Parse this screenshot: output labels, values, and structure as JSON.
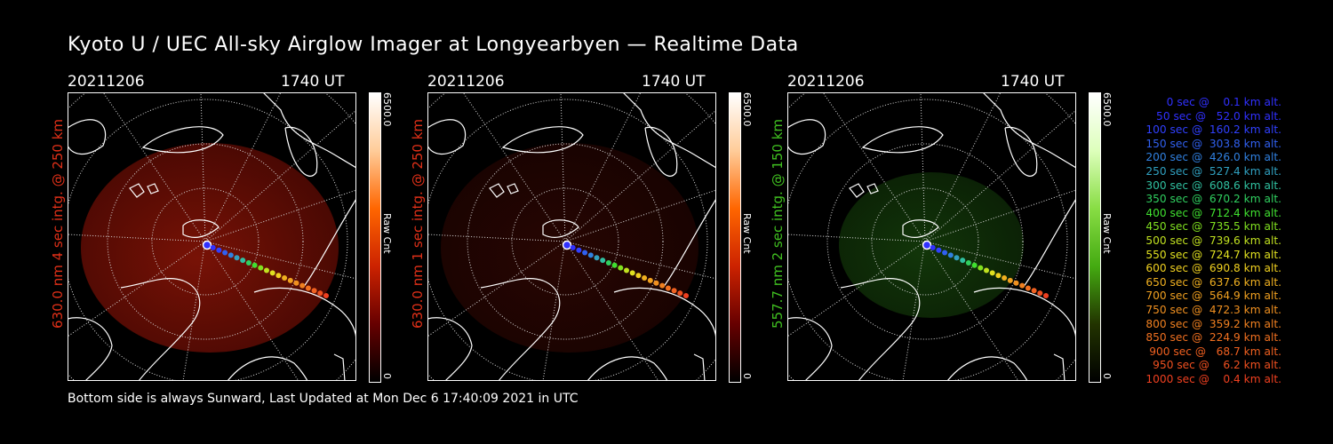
{
  "page": {
    "title": "Kyoto U / UEC All-sky Airglow Imager at Longyearbyen — Realtime Data",
    "footer": "Bottom side is always Sunward, Last Updated at Mon Dec  6 17:40:09 2021 in UTC"
  },
  "panels": [
    {
      "date": "20211206",
      "time": "1740 UT",
      "side_label": "630.0 nm 4 sec intg. @ 250 km",
      "side_color": "#e03018",
      "cbar_max": "6500.0",
      "cbar_min": "0",
      "cbar_label": "Raw Cnt",
      "glow": "red",
      "intensity": 0.75
    },
    {
      "date": "20211206",
      "time": "1740 UT",
      "side_label": "630.0 nm 1 sec intg. @ 250 km",
      "side_color": "#e03018",
      "cbar_max": "6500.0",
      "cbar_min": "0",
      "cbar_label": "Raw Cnt",
      "glow": "red",
      "intensity": 0.25
    },
    {
      "date": "20211206",
      "time": "1740 UT",
      "side_label": "557.7 nm 2 sec intg. @ 150 km",
      "side_color": "#40c020",
      "cbar_max": "6500.0",
      "cbar_min": "0",
      "cbar_label": "Raw Cnt",
      "glow": "green",
      "intensity": 0.6
    }
  ],
  "legend": [
    {
      "text": "   0 sec @    0.1 km alt.",
      "color": "#3030ff"
    },
    {
      "text": "  50 sec @   52.0 km alt.",
      "color": "#3030ff"
    },
    {
      "text": " 100 sec @  160.2 km alt.",
      "color": "#3040ff"
    },
    {
      "text": " 150 sec @  303.8 km alt.",
      "color": "#3060f0"
    },
    {
      "text": " 200 sec @  426.0 km alt.",
      "color": "#3080e0"
    },
    {
      "text": " 250 sec @  527.4 km alt.",
      "color": "#30a0c0"
    },
    {
      "text": " 300 sec @  608.6 km alt.",
      "color": "#30c0a0"
    },
    {
      "text": " 350 sec @  670.2 km alt.",
      "color": "#30d060"
    },
    {
      "text": " 400 sec @  712.4 km alt.",
      "color": "#40e030"
    },
    {
      "text": " 450 sec @  735.5 km alt.",
      "color": "#80e020"
    },
    {
      "text": " 500 sec @  739.6 km alt.",
      "color": "#c0e020"
    },
    {
      "text": " 550 sec @  724.7 km alt.",
      "color": "#e0e020"
    },
    {
      "text": " 600 sec @  690.8 km alt.",
      "color": "#f0d020"
    },
    {
      "text": " 650 sec @  637.6 km alt.",
      "color": "#f0b020"
    },
    {
      "text": " 700 sec @  564.9 km alt.",
      "color": "#f0a020"
    },
    {
      "text": " 750 sec @  472.3 km alt.",
      "color": "#f09020"
    },
    {
      "text": " 800 sec @  359.2 km alt.",
      "color": "#f08020"
    },
    {
      "text": " 850 sec @  224.9 km alt.",
      "color": "#f07020"
    },
    {
      "text": " 900 sec @   68.7 km alt.",
      "color": "#f06020"
    },
    {
      "text": " 950 sec @    6.2 km alt.",
      "color": "#f05020"
    },
    {
      "text": "1000 sec @    0.4 km alt.",
      "color": "#f04020"
    }
  ]
}
